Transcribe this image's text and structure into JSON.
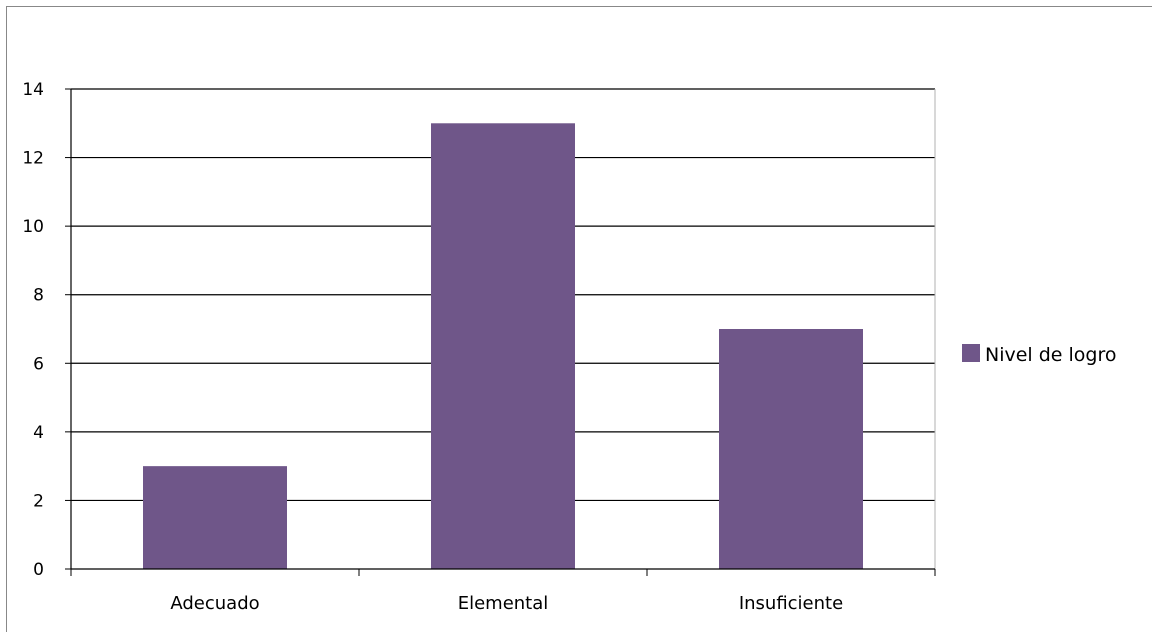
{
  "chart_data": {
    "type": "bar",
    "categories": [
      "Adecuado",
      "Elemental",
      "Insuficiente"
    ],
    "series": [
      {
        "name": "Nivel de logro",
        "values": [
          3,
          13,
          7
        ],
        "color": "#6f5689"
      }
    ],
    "ylim": [
      0,
      14
    ],
    "yticks": [
      "0",
      "2",
      "4",
      "6",
      "8",
      "10",
      "12",
      "14"
    ],
    "grid": true,
    "legend_position": "right"
  }
}
